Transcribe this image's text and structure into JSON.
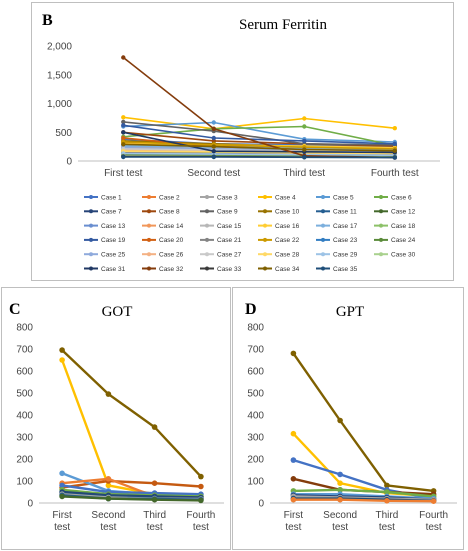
{
  "chart_data": [
    {
      "panel": "B",
      "type": "line",
      "title": "Serum Ferritin",
      "categories": [
        "First test",
        "Second test",
        "Third test",
        "Fourth test"
      ],
      "ylim": [
        0,
        2000
      ],
      "yticks": [
        "0",
        "500",
        "1,000",
        "1,500",
        "2,000"
      ],
      "grid": false,
      "legend": "bottom",
      "colors": [
        "#4472c4",
        "#ed7d31",
        "#a5a5a5",
        "#ffc000",
        "#5b9bd5",
        "#70ad47",
        "#264478",
        "#9e480e",
        "#636363",
        "#997300",
        "#255e91",
        "#43682b",
        "#698ed0",
        "#f1975a",
        "#b7b7b7",
        "#ffcd33",
        "#7cafdd",
        "#8cc168",
        "#335aa1",
        "#d26012",
        "#848484",
        "#cc9a00",
        "#327dc2",
        "#5a8a39",
        "#8faadc",
        "#f4b183",
        "#c9c9c9",
        "#ffd966",
        "#9dc3e6",
        "#a9d18e",
        "#203864",
        "#843c0c",
        "#3a3a3a",
        "#7f6000",
        "#1f4e79"
      ],
      "series": [
        {
          "name": "Case 1",
          "values": [
            380,
            300,
            280,
            250
          ]
        },
        {
          "name": "Case 2",
          "values": [
            320,
            260,
            220,
            200
          ]
        },
        {
          "name": "Case 3",
          "values": [
            220,
            200,
            180,
            160
          ]
        },
        {
          "name": "Case 4",
          "values": [
            760,
            560,
            740,
            570
          ]
        },
        {
          "name": "Case 5",
          "values": [
            600,
            670,
            380,
            330
          ]
        },
        {
          "name": "Case 6",
          "values": [
            420,
            560,
            600,
            270
          ]
        },
        {
          "name": "Case 7",
          "values": [
            140,
            120,
            110,
            100
          ]
        },
        {
          "name": "Case 8",
          "values": [
            500,
            350,
            300,
            260
          ]
        },
        {
          "name": "Case 9",
          "values": [
            680,
            520,
            300,
            280
          ]
        },
        {
          "name": "Case 10",
          "values": [
            350,
            300,
            250,
            220
          ]
        },
        {
          "name": "Case 11",
          "values": [
            180,
            150,
            140,
            120
          ]
        },
        {
          "name": "Case 12",
          "values": [
            100,
            90,
            80,
            70
          ]
        },
        {
          "name": "Case 13",
          "values": [
            280,
            250,
            230,
            210
          ]
        },
        {
          "name": "Case 14",
          "values": [
            240,
            210,
            190,
            170
          ]
        },
        {
          "name": "Case 15",
          "values": [
            200,
            180,
            160,
            150
          ]
        },
        {
          "name": "Case 16",
          "values": [
            300,
            280,
            260,
            230
          ]
        },
        {
          "name": "Case 17",
          "values": [
            260,
            240,
            220,
            200
          ]
        },
        {
          "name": "Case 18",
          "values": [
            160,
            140,
            130,
            120
          ]
        },
        {
          "name": "Case 19",
          "values": [
            620,
            400,
            350,
            300
          ]
        },
        {
          "name": "Case 20",
          "values": [
            400,
            250,
            200,
            150
          ]
        },
        {
          "name": "Case 21",
          "values": [
            150,
            130,
            120,
            110
          ]
        },
        {
          "name": "Case 22",
          "values": [
            330,
            280,
            240,
            210
          ]
        },
        {
          "name": "Case 23",
          "values": [
            120,
            110,
            100,
            90
          ]
        },
        {
          "name": "Case 24",
          "values": [
            110,
            100,
            90,
            80
          ]
        },
        {
          "name": "Case 25",
          "values": [
            230,
            210,
            200,
            180
          ]
        },
        {
          "name": "Case 26",
          "values": [
            190,
            170,
            150,
            140
          ]
        },
        {
          "name": "Case 27",
          "values": [
            210,
            190,
            170,
            160
          ]
        },
        {
          "name": "Case 28",
          "values": [
            170,
            160,
            140,
            130
          ]
        },
        {
          "name": "Case 29",
          "values": [
            130,
            120,
            110,
            100
          ]
        },
        {
          "name": "Case 30",
          "values": [
            90,
            80,
            75,
            70
          ]
        },
        {
          "name": "Case 31",
          "values": [
            500,
            170,
            160,
            150
          ]
        },
        {
          "name": "Case 32",
          "values": [
            1800,
            560,
            90,
            60
          ]
        },
        {
          "name": "Case 33",
          "values": [
            80,
            75,
            70,
            65
          ]
        },
        {
          "name": "Case 34",
          "values": [
            290,
            250,
            200,
            180
          ]
        },
        {
          "name": "Case 35",
          "values": [
            70,
            70,
            65,
            60
          ]
        }
      ]
    },
    {
      "panel": "C",
      "type": "line",
      "title": "GOT",
      "categories": [
        "First test",
        "Second test",
        "Third test",
        "Fourth test"
      ],
      "ylim": [
        0,
        800
      ],
      "yticks": [
        "0",
        "100",
        "200",
        "300",
        "400",
        "500",
        "600",
        "700",
        "800"
      ],
      "grid": false,
      "colors": [
        "#7f6000",
        "#ffc000",
        "#c55a11",
        "#5b9bd5",
        "#ed7d31",
        "#4472c4",
        "#70ad47",
        "#264478",
        "#1f4e79",
        "#a5a5a5",
        "#255e91",
        "#43682b"
      ],
      "series": [
        {
          "values": [
            695,
            495,
            345,
            120
          ]
        },
        {
          "values": [
            650,
            80,
            40,
            30
          ]
        },
        {
          "values": [
            70,
            100,
            90,
            75
          ]
        },
        {
          "values": [
            135,
            55,
            40,
            30
          ]
        },
        {
          "values": [
            90,
            110,
            30,
            20
          ]
        },
        {
          "values": [
            80,
            50,
            45,
            40
          ]
        },
        {
          "values": [
            60,
            40,
            35,
            30
          ]
        },
        {
          "values": [
            50,
            35,
            30,
            25
          ]
        },
        {
          "values": [
            45,
            30,
            25,
            20
          ]
        },
        {
          "values": [
            40,
            25,
            20,
            18
          ]
        },
        {
          "values": [
            35,
            20,
            18,
            15
          ]
        },
        {
          "values": [
            30,
            20,
            15,
            12
          ]
        }
      ]
    },
    {
      "panel": "D",
      "type": "line",
      "title": "GPT",
      "categories": [
        "First test",
        "Second test",
        "Third test",
        "Fourth test"
      ],
      "ylim": [
        0,
        800
      ],
      "yticks": [
        "0",
        "100",
        "200",
        "300",
        "400",
        "500",
        "600",
        "700",
        "800"
      ],
      "grid": false,
      "colors": [
        "#7f6000",
        "#ffc000",
        "#4472c4",
        "#843c0c",
        "#70ad47",
        "#5b9bd5",
        "#264478",
        "#a5a5a5",
        "#1f4e79",
        "#ed7d31"
      ],
      "series": [
        {
          "values": [
            680,
            375,
            80,
            55
          ]
        },
        {
          "values": [
            315,
            90,
            45,
            30
          ]
        },
        {
          "values": [
            195,
            130,
            60,
            20
          ]
        },
        {
          "values": [
            110,
            60,
            50,
            40
          ]
        },
        {
          "values": [
            55,
            60,
            50,
            30
          ]
        },
        {
          "values": [
            40,
            40,
            30,
            20
          ]
        },
        {
          "values": [
            35,
            30,
            25,
            15
          ]
        },
        {
          "values": [
            30,
            25,
            20,
            15
          ]
        },
        {
          "values": [
            20,
            20,
            15,
            10
          ]
        },
        {
          "values": [
            15,
            15,
            10,
            8
          ]
        }
      ]
    }
  ]
}
